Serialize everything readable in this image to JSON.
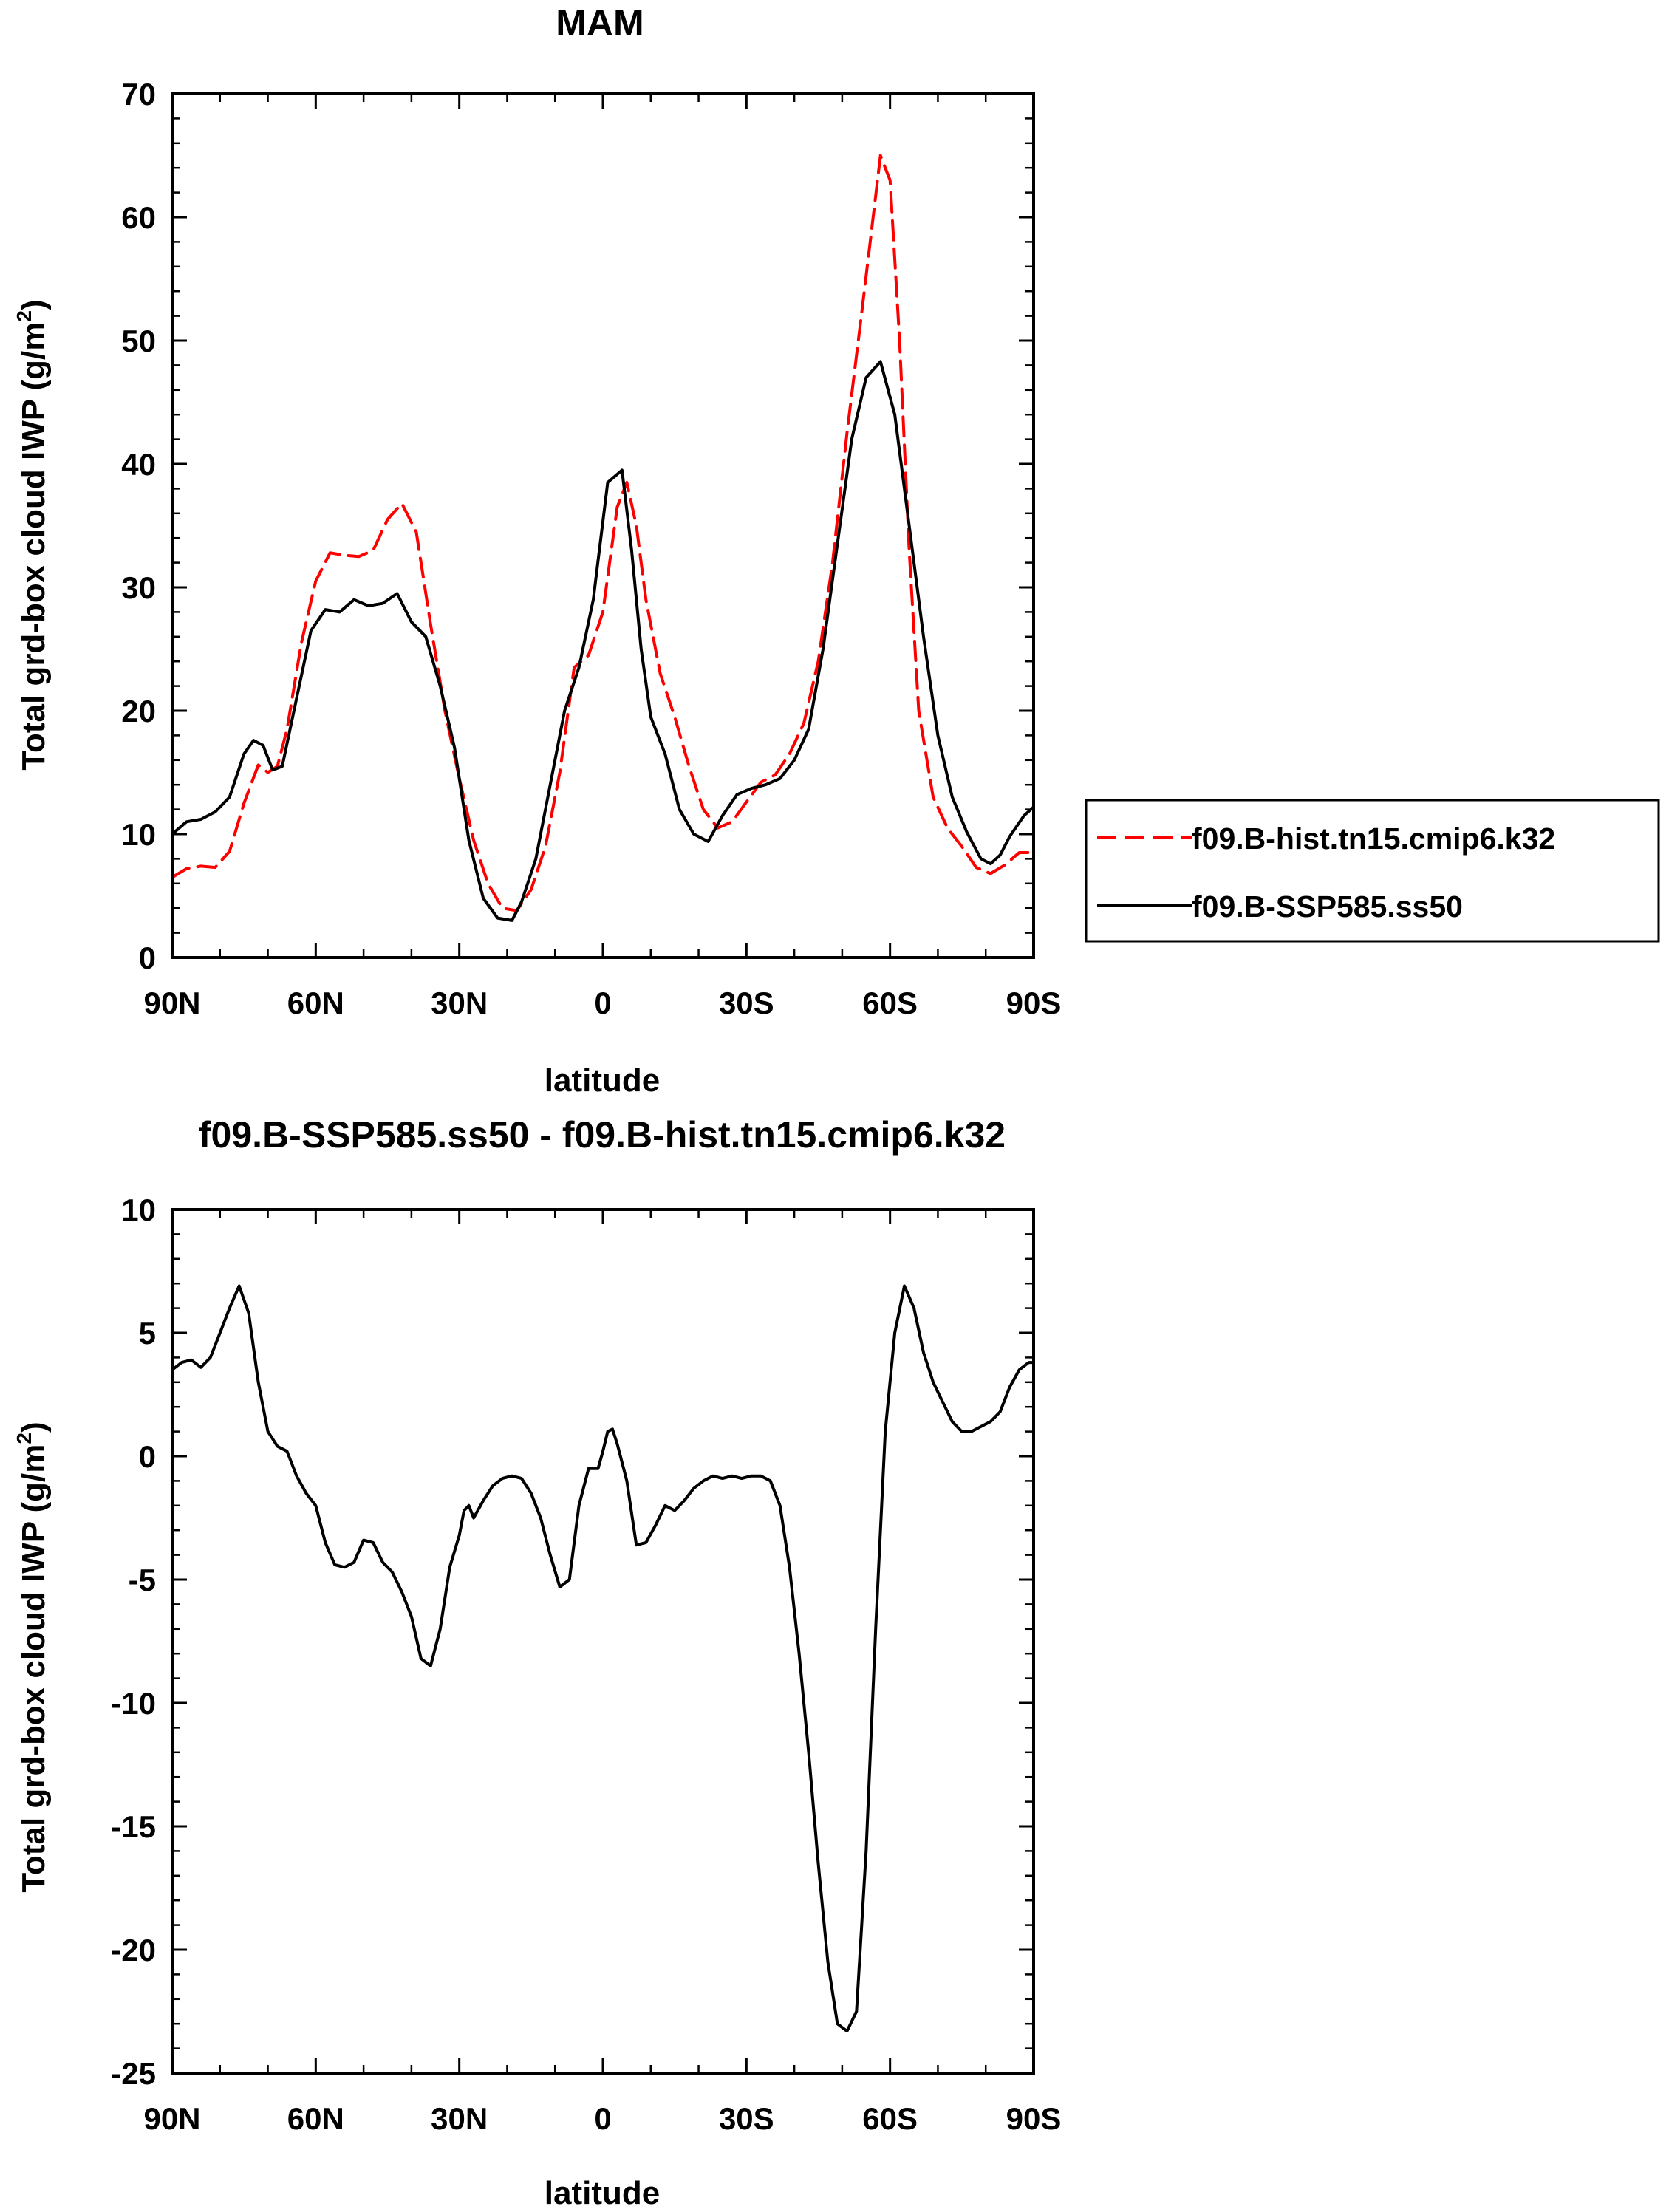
{
  "chart_data": [
    {
      "type": "line",
      "title": "MAM",
      "xlabel": "latitude",
      "ylabel": "Total grd-box cloud IWP (g/m",
      "ylabel_sup": "2",
      "ylabel_close": ")",
      "xlim": [
        -90,
        90
      ],
      "ylim": [
        0,
        70
      ],
      "xticks": [
        -90,
        -60,
        -30,
        0,
        30,
        60,
        90
      ],
      "xtick_labels": [
        "90N",
        "60N",
        "30N",
        "0",
        "30S",
        "60S",
        "90S"
      ],
      "yticks": [
        0,
        10,
        20,
        30,
        40,
        50,
        60,
        70
      ],
      "ytick_labels": [
        "0",
        "10",
        "20",
        "30",
        "40",
        "50",
        "60",
        "70"
      ],
      "legend": {
        "position": "right",
        "entries": [
          "f09.B-hist.tn15.cmip6.k32",
          "f09.B-SSP585.ss50"
        ]
      },
      "series": [
        {
          "name": "f09.B-hist.tn15.cmip6.k32",
          "color": "#ff0000",
          "dash": "dashed",
          "x": [
            -90,
            -87,
            -84,
            -81,
            -78,
            -75,
            -72,
            -70,
            -68,
            -66,
            -63,
            -60,
            -57,
            -54,
            -51,
            -48,
            -45,
            -42,
            -39,
            -36,
            -33,
            -30,
            -27,
            -24,
            -21,
            -18,
            -15,
            -12,
            -9,
            -6,
            -3,
            0,
            3,
            5,
            7,
            9,
            12,
            15,
            18,
            21,
            24,
            27,
            30,
            33,
            36,
            39,
            42,
            45,
            48,
            51,
            54,
            56,
            58,
            60,
            62,
            64,
            66,
            69,
            72,
            75,
            78,
            81,
            84,
            87,
            90
          ],
          "y": [
            6.5,
            7.2,
            7.4,
            7.3,
            8.6,
            12.5,
            15.6,
            15.0,
            15.5,
            18.5,
            25.5,
            30.5,
            32.8,
            32.6,
            32.5,
            33.0,
            35.5,
            36.8,
            34.5,
            27.0,
            20.0,
            14.5,
            9.5,
            6.0,
            4.0,
            3.8,
            5.5,
            9.0,
            15.0,
            23.5,
            24.5,
            28.0,
            36.5,
            38.5,
            35.0,
            29.0,
            23.0,
            19.5,
            15.5,
            12.0,
            10.5,
            11.0,
            12.6,
            14.2,
            14.8,
            16.5,
            19.0,
            24.0,
            32.0,
            42.5,
            52.0,
            58.5,
            65.0,
            63.0,
            50.0,
            33.0,
            20.0,
            13.0,
            10.5,
            9.0,
            7.3,
            6.8,
            7.5,
            8.5,
            8.5
          ]
        },
        {
          "name": "f09.B-SSP585.ss50",
          "color": "#000000",
          "dash": "solid",
          "x": [
            -90,
            -87,
            -84,
            -81,
            -78,
            -75,
            -73,
            -71,
            -69,
            -67,
            -64,
            -61,
            -58,
            -55,
            -52,
            -49,
            -46,
            -43,
            -40,
            -37,
            -34,
            -31,
            -28,
            -25,
            -22,
            -19,
            -17,
            -14,
            -11,
            -8,
            -5,
            -2,
            1,
            4,
            6,
            8,
            10,
            13,
            16,
            19,
            22,
            25,
            28,
            31,
            34,
            37,
            40,
            43,
            46,
            49,
            52,
            55,
            58,
            61,
            64,
            67,
            70,
            73,
            76,
            79,
            81,
            83,
            85,
            88,
            90
          ],
          "y": [
            10.0,
            11.0,
            11.2,
            11.8,
            13.0,
            16.5,
            17.6,
            17.2,
            15.2,
            15.5,
            21.0,
            26.5,
            28.2,
            28.0,
            29.0,
            28.5,
            28.7,
            29.5,
            27.2,
            26.0,
            22.0,
            17.0,
            9.5,
            4.8,
            3.2,
            3.0,
            4.5,
            8.0,
            14.0,
            20.0,
            23.5,
            29.0,
            38.5,
            39.5,
            33.0,
            25.0,
            19.5,
            16.5,
            12.0,
            10.0,
            9.4,
            11.5,
            13.2,
            13.7,
            14.0,
            14.5,
            16.0,
            18.5,
            25.0,
            33.5,
            42.0,
            47.0,
            48.3,
            44.0,
            35.0,
            26.0,
            18.0,
            13.0,
            10.2,
            8.0,
            7.6,
            8.3,
            9.8,
            11.5,
            12.2
          ]
        }
      ]
    },
    {
      "type": "line",
      "title": "f09.B-SSP585.ss50 - f09.B-hist.tn15.cmip6.k32",
      "xlabel": "latitude",
      "ylabel": "Total grd-box cloud IWP (g/m",
      "ylabel_sup": "2",
      "ylabel_close": ")",
      "xlim": [
        -90,
        90
      ],
      "ylim": [
        -25,
        10
      ],
      "xticks": [
        -90,
        -60,
        -30,
        0,
        30,
        60,
        90
      ],
      "xtick_labels": [
        "90N",
        "60N",
        "30N",
        "0",
        "30S",
        "60S",
        "90S"
      ],
      "yticks": [
        -25,
        -20,
        -15,
        -10,
        -5,
        0,
        5,
        10
      ],
      "ytick_labels": [
        "-25",
        "-20",
        "-15",
        "-10",
        "-5",
        "0",
        "5",
        "10"
      ],
      "series": [
        {
          "name": "f09.B-SSP585.ss50 - f09.B-hist.tn15.cmip6.k32",
          "color": "#000000",
          "dash": "solid",
          "x": [
            -90,
            -88,
            -86,
            -84,
            -82,
            -80,
            -78,
            -76,
            -74,
            -72,
            -70,
            -68,
            -66,
            -64,
            -62,
            -60,
            -58,
            -56,
            -54,
            -52,
            -50,
            -48,
            -46,
            -44,
            -42,
            -40,
            -38,
            -36,
            -34,
            -32,
            -30,
            -29,
            -28,
            -27,
            -25,
            -23,
            -21,
            -19,
            -17,
            -15,
            -13,
            -11,
            -9,
            -7,
            -5,
            -3,
            -1,
            0,
            1,
            2,
            3,
            5,
            7,
            9,
            11,
            13,
            15,
            17,
            19,
            21,
            23,
            25,
            27,
            29,
            31,
            33,
            35,
            37,
            39,
            41,
            43,
            45,
            47,
            49,
            51,
            53,
            55,
            57,
            59,
            61,
            63,
            65,
            67,
            69,
            71,
            73,
            75,
            77,
            79,
            81,
            83,
            85,
            87,
            89,
            90
          ],
          "y": [
            3.5,
            3.8,
            3.9,
            3.6,
            4.0,
            5.0,
            6.0,
            6.9,
            5.8,
            3.0,
            1.0,
            0.4,
            0.2,
            -0.8,
            -1.5,
            -2.0,
            -3.5,
            -4.4,
            -4.5,
            -4.3,
            -3.4,
            -3.5,
            -4.3,
            -4.7,
            -5.5,
            -6.5,
            -8.2,
            -8.5,
            -7.0,
            -4.5,
            -3.2,
            -2.2,
            -2.0,
            -2.5,
            -1.8,
            -1.2,
            -0.9,
            -0.8,
            -0.9,
            -1.5,
            -2.5,
            -4.0,
            -5.3,
            -5.0,
            -2.0,
            -0.5,
            -0.5,
            0.2,
            1.0,
            1.1,
            0.5,
            -1.0,
            -3.6,
            -3.5,
            -2.8,
            -2.0,
            -2.2,
            -1.8,
            -1.3,
            -1.0,
            -0.8,
            -0.9,
            -0.8,
            -0.9,
            -0.8,
            -0.8,
            -1.0,
            -2.0,
            -4.5,
            -8.0,
            -12.0,
            -16.5,
            -20.5,
            -23.0,
            -23.3,
            -22.5,
            -16.0,
            -7.0,
            1.0,
            5.0,
            6.9,
            6.0,
            4.2,
            3.0,
            2.2,
            1.4,
            1.0,
            1.0,
            1.2,
            1.4,
            1.8,
            2.8,
            3.5,
            3.8,
            3.8
          ]
        }
      ]
    }
  ]
}
